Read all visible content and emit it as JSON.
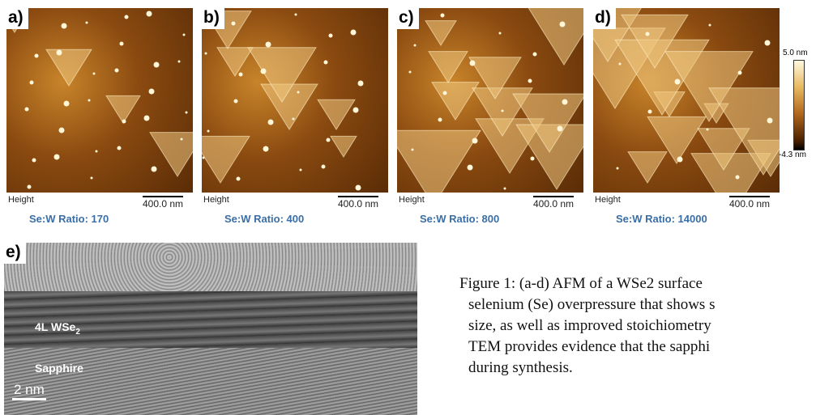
{
  "panels": [
    {
      "label": "a)",
      "height_label": "Height",
      "scale_label": "400.0 nm",
      "ratio": "Se:W Ratio: 170"
    },
    {
      "label": "b)",
      "height_label": "Height",
      "scale_label": "400.0 nm",
      "ratio": "Se:W Ratio: 400"
    },
    {
      "label": "c)",
      "height_label": "Height",
      "scale_label": "400.0 nm",
      "ratio": "Se:W Ratio: 800"
    },
    {
      "label": "d)",
      "height_label": "Height",
      "scale_label": "400.0 nm",
      "ratio": "Se:W Ratio: 14000"
    }
  ],
  "colorbar": {
    "max": "5.0 nm",
    "min": "-4.3 nm"
  },
  "tem": {
    "label": "e)",
    "layer": "4L WSe",
    "layer_sub": "2",
    "substrate": "Sapphire",
    "scale": "2 nm"
  },
  "caption": {
    "lines": [
      "Figure 1: (a-d) AFM of a WSe2 surface",
      "selenium (Se) overpressure that shows s",
      "size, as well as improved stoichiometry",
      "TEM provides evidence that the sapphi",
      "during synthesis."
    ]
  }
}
